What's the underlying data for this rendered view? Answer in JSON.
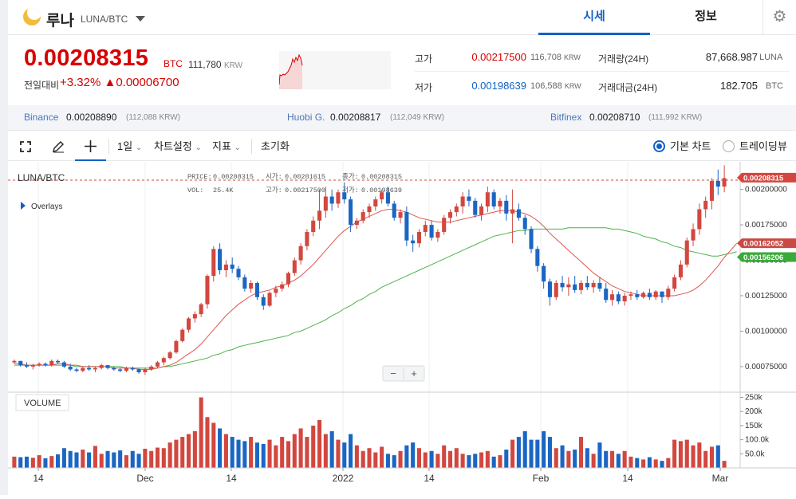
{
  "header": {
    "coin_name": "루나",
    "pair": "LUNA/BTC",
    "tab_quote": "시세",
    "tab_info": "정보",
    "settings_icon": "gear-icon"
  },
  "price_block": {
    "price": "0.00208315",
    "unit": "BTC",
    "krw": "111,780",
    "krw_unit": "KRW",
    "change_label": "전일대비",
    "change_pct": "+3.32%",
    "change_abs": "▲0.00006700",
    "colors": {
      "up": "#d60000",
      "down": "#1261c4"
    }
  },
  "stats": {
    "high_label": "고가",
    "high_value": "0.00217500",
    "high_krw": "116,708",
    "low_label": "저가",
    "low_value": "0.00198639",
    "low_krw": "106,588",
    "krw_unit": "KRW",
    "volume_label": "거래량(24H)",
    "volume_value": "87,668.987",
    "volume_unit": "LUNA",
    "amount_label": "거래대금(24H)",
    "amount_value": "182.705",
    "amount_unit": "BTC"
  },
  "exchanges": [
    {
      "name": "Binance",
      "price": "0.00208890",
      "krw": "(112,088 KRW)"
    },
    {
      "name": "Huobi G.",
      "price": "0.00208817",
      "krw": "(112,049 KRW)"
    },
    {
      "name": "Bitfinex",
      "price": "0.00208710",
      "krw": "(111,992 KRW)"
    }
  ],
  "toolbar": {
    "fullscreen_icon": "fullscreen-icon",
    "draw_icon": "pencil-icon",
    "crosshair_icon": "crosshair-icon",
    "interval": "1일",
    "chart_settings": "차트설정",
    "indicators": "지표",
    "reset": "초기화",
    "basic_chart": "기본 차트",
    "tradingview": "트레이딩뷰"
  },
  "chart": {
    "symbol": "LUNA/BTC",
    "ohlc": {
      "price_label": "PRICE:",
      "price": "0.00208315",
      "open_label": "시가:",
      "open": "0.00201615",
      "close_label": "종가:",
      "close": "0.00208315",
      "vol_label": "VOL:",
      "vol": "25.4K",
      "high_label": "고가:",
      "high": "0.00217500",
      "low_label": "저가:",
      "low": "0.00198639"
    },
    "overlays_label": "Overlays",
    "volume_label": "VOLUME",
    "zoom_out": "−",
    "zoom_in": "+",
    "badges": [
      "0.00208315",
      "0.00162052",
      "0.00156206"
    ],
    "price_ticks": [
      "0.00200000",
      "0.00175000",
      "0.00150000",
      "0.00125000",
      "0.00100000",
      "0.00075000"
    ],
    "volume_ticks": [
      "250k",
      "200k",
      "150k",
      "100.0k",
      "50.0k"
    ],
    "date_ticks": [
      "14",
      "Dec",
      "14",
      "2022",
      "14",
      "Feb",
      "14",
      "Mar"
    ],
    "colors": {
      "up": "#d2473f",
      "down": "#1a66c4",
      "ma_short": "#e0564e",
      "ma_long": "#4bb34b",
      "badge_last": "#d2473f",
      "badge_short": "#c94a43",
      "badge_long": "#3aaa3a"
    }
  },
  "chart_data": {
    "type": "candlestick",
    "title": "LUNA/BTC",
    "price_range": [
      0.00062,
      0.00215
    ],
    "volume_range": [
      0,
      260000
    ],
    "dates": [
      "Nov 14",
      "Dec",
      "Dec 14",
      "2022",
      "Jan 14",
      "Feb",
      "Feb 14",
      "Mar"
    ],
    "last_price": 0.00208315,
    "ma_short_last": 0.00162052,
    "ma_long_last": 0.00156206,
    "candles": [
      [
        0.00078,
        0.0008,
        0.00077,
        0.00079,
        40000
      ],
      [
        0.00079,
        0.00079,
        0.00075,
        0.00076,
        38000
      ],
      [
        0.00076,
        0.00078,
        0.00074,
        0.00075,
        40000
      ],
      [
        0.00075,
        0.00077,
        0.00073,
        0.00076,
        36000
      ],
      [
        0.00076,
        0.00078,
        0.00075,
        0.00077,
        45000
      ],
      [
        0.00077,
        0.00078,
        0.00075,
        0.00076,
        34000
      ],
      [
        0.00076,
        0.0008,
        0.00075,
        0.00079,
        42000
      ],
      [
        0.00079,
        0.0008,
        0.00077,
        0.00078,
        48000
      ],
      [
        0.00078,
        0.00079,
        0.00074,
        0.00075,
        70000
      ],
      [
        0.00075,
        0.00077,
        0.00072,
        0.00073,
        60000
      ],
      [
        0.00073,
        0.00074,
        0.00071,
        0.00072,
        55000
      ],
      [
        0.00072,
        0.00075,
        0.00071,
        0.00074,
        65000
      ],
      [
        0.00074,
        0.00076,
        0.00072,
        0.00073,
        55000
      ],
      [
        0.00073,
        0.00075,
        0.00071,
        0.00074,
        78000
      ],
      [
        0.00074,
        0.00077,
        0.00073,
        0.00076,
        50000
      ],
      [
        0.00076,
        0.00076,
        0.00073,
        0.00074,
        60000
      ],
      [
        0.00074,
        0.00075,
        0.00072,
        0.00073,
        55000
      ],
      [
        0.00073,
        0.00074,
        0.00071,
        0.00072,
        62000
      ],
      [
        0.00072,
        0.00075,
        0.00071,
        0.00074,
        45000
      ],
      [
        0.00074,
        0.00075,
        0.00072,
        0.00073,
        60000
      ],
      [
        0.00073,
        0.00074,
        0.0007,
        0.00071,
        50000
      ],
      [
        0.00071,
        0.00074,
        0.00069,
        0.00073,
        68000
      ],
      [
        0.00073,
        0.00076,
        0.00072,
        0.00075,
        60000
      ],
      [
        0.00075,
        0.00079,
        0.00074,
        0.00078,
        72000
      ],
      [
        0.00078,
        0.00082,
        0.00076,
        0.00081,
        70000
      ],
      [
        0.00081,
        0.00086,
        0.0008,
        0.00085,
        90000
      ],
      [
        0.00085,
        0.00094,
        0.00084,
        0.00093,
        100000
      ],
      [
        0.00093,
        0.00102,
        0.00092,
        0.00101,
        110000
      ],
      [
        0.00101,
        0.0011,
        0.00099,
        0.00109,
        120000
      ],
      [
        0.00109,
        0.00114,
        0.00106,
        0.00112,
        130000
      ],
      [
        0.00112,
        0.0012,
        0.0011,
        0.00119,
        250000
      ],
      [
        0.00119,
        0.0014,
        0.00116,
        0.00139,
        180000
      ],
      [
        0.00139,
        0.0016,
        0.00135,
        0.00158,
        160000
      ],
      [
        0.00158,
        0.00162,
        0.0014,
        0.00143,
        140000
      ],
      [
        0.00143,
        0.0015,
        0.00138,
        0.00147,
        120000
      ],
      [
        0.00147,
        0.00152,
        0.00141,
        0.00144,
        110000
      ],
      [
        0.00144,
        0.00146,
        0.00136,
        0.00138,
        100000
      ],
      [
        0.00138,
        0.0014,
        0.00128,
        0.0013,
        95000
      ],
      [
        0.0013,
        0.00136,
        0.00127,
        0.00134,
        110000
      ],
      [
        0.00134,
        0.00135,
        0.00122,
        0.00124,
        90000
      ],
      [
        0.00124,
        0.00126,
        0.00115,
        0.00118,
        85000
      ],
      [
        0.00118,
        0.00128,
        0.00117,
        0.00127,
        100000
      ],
      [
        0.00127,
        0.00132,
        0.00124,
        0.0013,
        80000
      ],
      [
        0.0013,
        0.00135,
        0.00128,
        0.00133,
        110000
      ],
      [
        0.00133,
        0.00142,
        0.00131,
        0.00141,
        95000
      ],
      [
        0.00141,
        0.00152,
        0.00139,
        0.0015,
        120000
      ],
      [
        0.0015,
        0.00162,
        0.00147,
        0.0016,
        140000
      ],
      [
        0.0016,
        0.00172,
        0.00157,
        0.0017,
        110000
      ],
      [
        0.0017,
        0.00181,
        0.00167,
        0.00178,
        150000
      ],
      [
        0.00178,
        0.002,
        0.00172,
        0.00185,
        170000
      ],
      [
        0.00185,
        0.00202,
        0.0018,
        0.00195,
        120000
      ],
      [
        0.00195,
        0.002,
        0.00185,
        0.0019,
        130000
      ],
      [
        0.0019,
        0.002,
        0.00187,
        0.00198,
        100000
      ],
      [
        0.00198,
        0.00205,
        0.0019,
        0.00193,
        90000
      ],
      [
        0.00193,
        0.00195,
        0.0017,
        0.00175,
        120000
      ],
      [
        0.00175,
        0.0018,
        0.00172,
        0.00178,
        80000
      ],
      [
        0.00178,
        0.00186,
        0.00176,
        0.00184,
        60000
      ],
      [
        0.00184,
        0.0019,
        0.0018,
        0.00188,
        70000
      ],
      [
        0.00188,
        0.00195,
        0.00185,
        0.00193,
        55000
      ],
      [
        0.00193,
        0.002,
        0.0019,
        0.00198,
        75000
      ],
      [
        0.00198,
        0.00202,
        0.00188,
        0.0019,
        50000
      ],
      [
        0.0019,
        0.00192,
        0.00178,
        0.0018,
        45000
      ],
      [
        0.0018,
        0.00186,
        0.00176,
        0.00184,
        60000
      ],
      [
        0.00184,
        0.00188,
        0.0016,
        0.00164,
        80000
      ],
      [
        0.00164,
        0.00168,
        0.00156,
        0.00162,
        90000
      ],
      [
        0.00162,
        0.00172,
        0.00159,
        0.0017,
        70000
      ],
      [
        0.0017,
        0.00178,
        0.00167,
        0.00175,
        55000
      ],
      [
        0.00175,
        0.00178,
        0.00164,
        0.00166,
        60000
      ],
      [
        0.00166,
        0.00172,
        0.00163,
        0.0017,
        50000
      ],
      [
        0.0017,
        0.00182,
        0.00168,
        0.0018,
        80000
      ],
      [
        0.0018,
        0.00186,
        0.00176,
        0.00184,
        60000
      ],
      [
        0.00184,
        0.0019,
        0.00181,
        0.00188,
        70000
      ],
      [
        0.00188,
        0.00198,
        0.00183,
        0.00195,
        50000
      ],
      [
        0.00195,
        0.002,
        0.00188,
        0.00192,
        45000
      ],
      [
        0.00192,
        0.00194,
        0.0018,
        0.00182,
        50000
      ],
      [
        0.00182,
        0.0019,
        0.00178,
        0.00188,
        55000
      ],
      [
        0.00188,
        0.00202,
        0.00184,
        0.00198,
        60000
      ],
      [
        0.00198,
        0.002,
        0.00186,
        0.00188,
        40000
      ],
      [
        0.00188,
        0.00194,
        0.00183,
        0.00192,
        45000
      ],
      [
        0.00192,
        0.00196,
        0.00178,
        0.00183,
        65000
      ],
      [
        0.00183,
        0.002,
        0.00162,
        0.00186,
        100000
      ],
      [
        0.00186,
        0.0019,
        0.00178,
        0.0018,
        110000
      ],
      [
        0.0018,
        0.00182,
        0.00168,
        0.00172,
        130000
      ],
      [
        0.00172,
        0.00174,
        0.00155,
        0.00158,
        100000
      ],
      [
        0.00158,
        0.0016,
        0.00142,
        0.00146,
        100000
      ],
      [
        0.00146,
        0.00148,
        0.0013,
        0.00135,
        130000
      ],
      [
        0.00135,
        0.00137,
        0.00118,
        0.00124,
        110000
      ],
      [
        0.00124,
        0.00136,
        0.00122,
        0.00134,
        70000
      ],
      [
        0.00134,
        0.00139,
        0.00128,
        0.00131,
        80000
      ],
      [
        0.00131,
        0.00138,
        0.00125,
        0.00133,
        60000
      ],
      [
        0.00133,
        0.00139,
        0.00127,
        0.00129,
        65000
      ],
      [
        0.00129,
        0.00136,
        0.00126,
        0.00134,
        110000
      ],
      [
        0.00134,
        0.00139,
        0.00129,
        0.00131,
        70000
      ],
      [
        0.00131,
        0.00136,
        0.00127,
        0.00134,
        50000
      ],
      [
        0.00134,
        0.00138,
        0.00128,
        0.0013,
        90000
      ],
      [
        0.0013,
        0.00134,
        0.0012,
        0.00122,
        60000
      ],
      [
        0.00122,
        0.00129,
        0.00118,
        0.00126,
        60000
      ],
      [
        0.00126,
        0.00128,
        0.00119,
        0.00121,
        50000
      ],
      [
        0.00121,
        0.00127,
        0.00118,
        0.00125,
        60000
      ],
      [
        0.00125,
        0.00128,
        0.00122,
        0.00126,
        40000
      ],
      [
        0.00126,
        0.00129,
        0.00122,
        0.00124,
        35000
      ],
      [
        0.00124,
        0.00128,
        0.00123,
        0.00127,
        30000
      ],
      [
        0.00127,
        0.0013,
        0.00122,
        0.00124,
        38000
      ],
      [
        0.00124,
        0.00129,
        0.00122,
        0.00128,
        30000
      ],
      [
        0.00128,
        0.00128,
        0.0012,
        0.00124,
        25000
      ],
      [
        0.00124,
        0.00132,
        0.00122,
        0.0013,
        35000
      ],
      [
        0.0013,
        0.0014,
        0.00128,
        0.00138,
        100000
      ],
      [
        0.00138,
        0.0015,
        0.00136,
        0.00147,
        95000
      ],
      [
        0.00147,
        0.00166,
        0.00145,
        0.00164,
        100000
      ],
      [
        0.00164,
        0.00176,
        0.0016,
        0.00172,
        80000
      ],
      [
        0.00172,
        0.0019,
        0.00168,
        0.00186,
        90000
      ],
      [
        0.00186,
        0.00195,
        0.0018,
        0.00192,
        60000
      ],
      [
        0.00192,
        0.00208,
        0.00186,
        0.00206,
        75000
      ],
      [
        0.00206,
        0.00214,
        0.00196,
        0.00202,
        80000
      ],
      [
        0.00202,
        0.00217,
        0.00198,
        0.00208,
        25000
      ]
    ],
    "ma_short": [
      0.00077,
      0.00077,
      0.00076,
      0.00076,
      0.00076,
      0.00076,
      0.00076,
      0.00077,
      0.00077,
      0.00076,
      0.00076,
      0.00075,
      0.00075,
      0.00075,
      0.00075,
      0.00075,
      0.00074,
      0.00074,
      0.00074,
      0.00074,
      0.00073,
      0.00073,
      0.00073,
      0.00074,
      0.00075,
      0.00076,
      0.00078,
      0.00081,
      0.00084,
      0.00087,
      0.00091,
      0.00096,
      0.00101,
      0.00106,
      0.00111,
      0.00115,
      0.00119,
      0.00122,
      0.00125,
      0.00127,
      0.00128,
      0.00129,
      0.00131,
      0.00132,
      0.00134,
      0.00136,
      0.00139,
      0.00143,
      0.00147,
      0.00152,
      0.00157,
      0.00162,
      0.00167,
      0.00171,
      0.00174,
      0.00177,
      0.00179,
      0.00181,
      0.00183,
      0.00185,
      0.00186,
      0.00186,
      0.00185,
      0.00184,
      0.00182,
      0.0018,
      0.00179,
      0.00178,
      0.00177,
      0.00177,
      0.00177,
      0.00178,
      0.00179,
      0.0018,
      0.00181,
      0.00182,
      0.00183,
      0.00184,
      0.00185,
      0.00185,
      0.00185,
      0.00184,
      0.00183,
      0.00181,
      0.00178,
      0.00174,
      0.00169,
      0.00165,
      0.00161,
      0.00157,
      0.00153,
      0.00149,
      0.00145,
      0.00141,
      0.00138,
      0.00135,
      0.00132,
      0.0013,
      0.00128,
      0.00127,
      0.00126,
      0.00125,
      0.00125,
      0.00125,
      0.00125,
      0.00125,
      0.00125,
      0.00126,
      0.00127,
      0.00129,
      0.00132,
      0.00136,
      0.00141,
      0.00146,
      0.00152,
      0.00157,
      0.00162
    ],
    "ma_long": [
      0.00076,
      0.00076,
      0.00076,
      0.00076,
      0.00076,
      0.00076,
      0.00076,
      0.00076,
      0.00076,
      0.00076,
      0.00075,
      0.00075,
      0.00075,
      0.00075,
      0.00075,
      0.00075,
      0.00075,
      0.00075,
      0.00074,
      0.00074,
      0.00074,
      0.00074,
      0.00074,
      0.00074,
      0.00075,
      0.00075,
      0.00076,
      0.00077,
      0.00078,
      0.00079,
      0.0008,
      0.00081,
      0.00083,
      0.00084,
      0.00086,
      0.00087,
      0.00089,
      0.0009,
      0.00091,
      0.00092,
      0.00093,
      0.00094,
      0.00095,
      0.00096,
      0.00097,
      0.00099,
      0.001,
      0.00102,
      0.00104,
      0.00106,
      0.00108,
      0.00111,
      0.00113,
      0.00116,
      0.00118,
      0.00121,
      0.00123,
      0.00126,
      0.00128,
      0.00131,
      0.00133,
      0.00135,
      0.00137,
      0.00139,
      0.00141,
      0.00143,
      0.00145,
      0.00147,
      0.00149,
      0.00151,
      0.00153,
      0.00155,
      0.00157,
      0.00159,
      0.00161,
      0.00163,
      0.00165,
      0.00167,
      0.00168,
      0.00169,
      0.0017,
      0.00171,
      0.00171,
      0.00172,
      0.00172,
      0.00172,
      0.00172,
      0.00172,
      0.00172,
      0.00173,
      0.00173,
      0.00173,
      0.00173,
      0.00173,
      0.00173,
      0.00173,
      0.00172,
      0.00172,
      0.00171,
      0.0017,
      0.00169,
      0.00167,
      0.00166,
      0.00165,
      0.00163,
      0.00162,
      0.0016,
      0.00159,
      0.00157,
      0.00156,
      0.00155,
      0.00154,
      0.00153,
      0.00153,
      0.00154,
      0.00155,
      0.00156
    ]
  }
}
